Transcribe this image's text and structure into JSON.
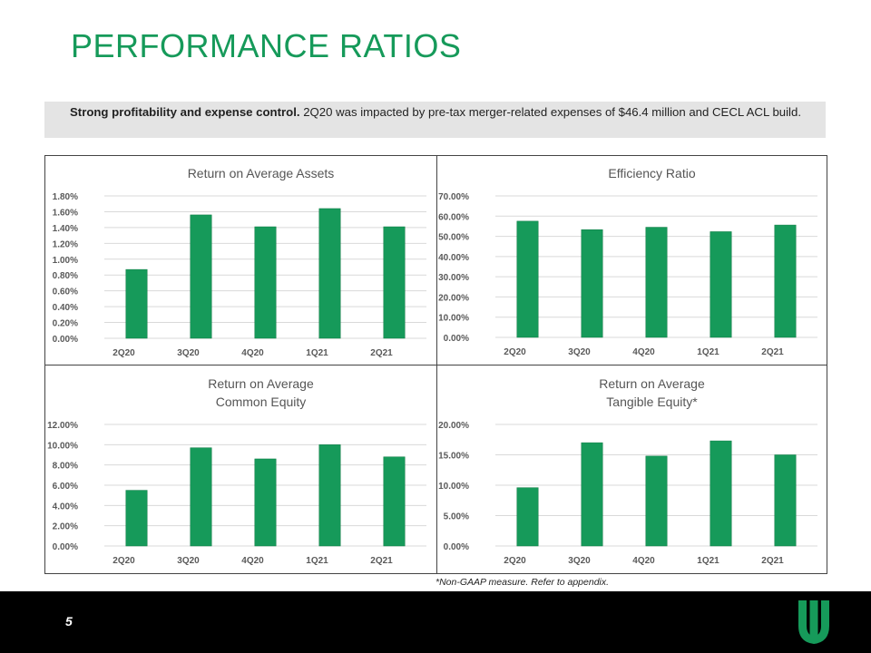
{
  "title": "PERFORMANCE RATIOS",
  "banner": {
    "bold": "Strong profitability and expense control.",
    "text": " 2Q20 was impacted by pre-tax merger-related expenses of $46.4 million and CECL ACL build."
  },
  "footnote": "*Non-GAAP measure.  Refer to appendix.",
  "page_number": "5",
  "colors": {
    "accent": "#169a5a",
    "bar": "#169a5a",
    "footer": "#000000"
  },
  "chart_data": [
    {
      "type": "bar",
      "title": [
        "Return on Average Assets"
      ],
      "categories": [
        "2Q20",
        "3Q20",
        "4Q20",
        "1Q21",
        "2Q21"
      ],
      "values": [
        0.87,
        1.56,
        1.41,
        1.64,
        1.41
      ],
      "ylim": [
        0,
        1.8
      ],
      "yticks": [
        "0.00%",
        "0.20%",
        "0.40%",
        "0.60%",
        "0.80%",
        "1.00%",
        "1.20%",
        "1.40%",
        "1.60%",
        "1.80%"
      ]
    },
    {
      "type": "bar",
      "title": [
        "Efficiency Ratio"
      ],
      "categories": [
        "2Q20",
        "3Q20",
        "4Q20",
        "1Q21",
        "2Q21"
      ],
      "values": [
        57.5,
        53.3,
        54.5,
        52.3,
        55.6
      ],
      "ylim": [
        0,
        70
      ],
      "yticks": [
        "0.00%",
        "10.00%",
        "20.00%",
        "30.00%",
        "40.00%",
        "50.00%",
        "60.00%",
        "70.00%"
      ]
    },
    {
      "type": "bar",
      "title": [
        "Return on Average",
        "Common Equity"
      ],
      "categories": [
        "2Q20",
        "3Q20",
        "4Q20",
        "1Q21",
        "2Q21"
      ],
      "values": [
        5.5,
        9.7,
        8.6,
        10.0,
        8.8
      ],
      "ylim": [
        0,
        12
      ],
      "yticks": [
        "0.00%",
        "2.00%",
        "4.00%",
        "6.00%",
        "8.00%",
        "10.00%",
        "12.00%"
      ]
    },
    {
      "type": "bar",
      "title": [
        "Return on Average",
        "Tangible Equity*"
      ],
      "categories": [
        "2Q20",
        "3Q20",
        "4Q20",
        "1Q21",
        "2Q21"
      ],
      "values": [
        9.6,
        17.0,
        14.8,
        17.3,
        15.0
      ],
      "ylim": [
        0,
        20
      ],
      "yticks": [
        "0.00%",
        "5.00%",
        "10.00%",
        "15.00%",
        "20.00%"
      ]
    }
  ]
}
